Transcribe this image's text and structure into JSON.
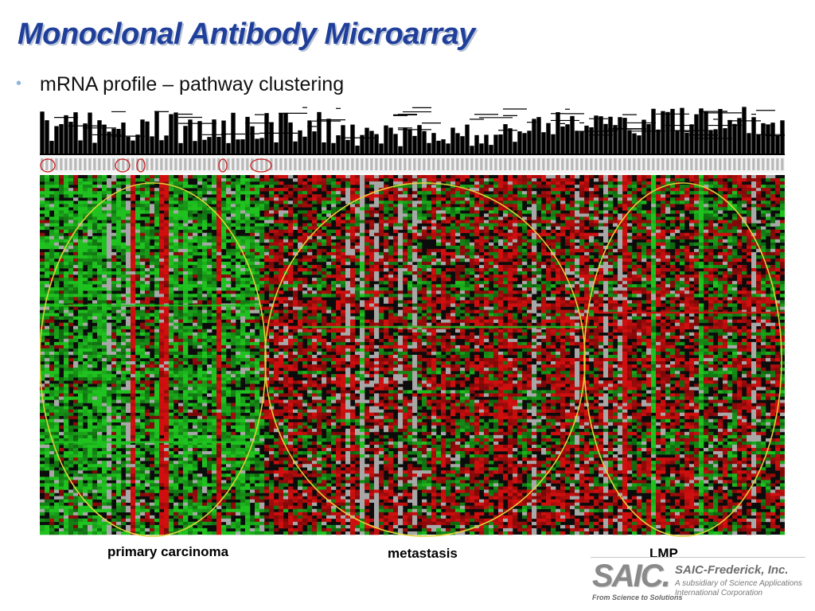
{
  "slide": {
    "title": "Monoclonal Antibody Microarray",
    "bullet": "mRNA profile – pathway clustering"
  },
  "figure": {
    "groups": [
      {
        "label": "primary carcinoma",
        "color": "#e2d23a"
      },
      {
        "label": "metastasis",
        "color": "#e2d23a"
      },
      {
        "label": "LMP",
        "color": "#e2d23a"
      }
    ],
    "colors": {
      "upregulated": "#d10f0f",
      "downregulated": "#1fc21f",
      "missing": "#a8a8a8",
      "neutral": "#0c0c0c",
      "sample_marker": "#cc2222"
    }
  },
  "logo": {
    "mark": "SAIC.",
    "tagline": "From Science to Solutions",
    "company": "SAIC-Frederick, Inc.",
    "subsidiary_line1": "A subsidiary of Science Applications",
    "subsidiary_line2": "International Corporation"
  }
}
